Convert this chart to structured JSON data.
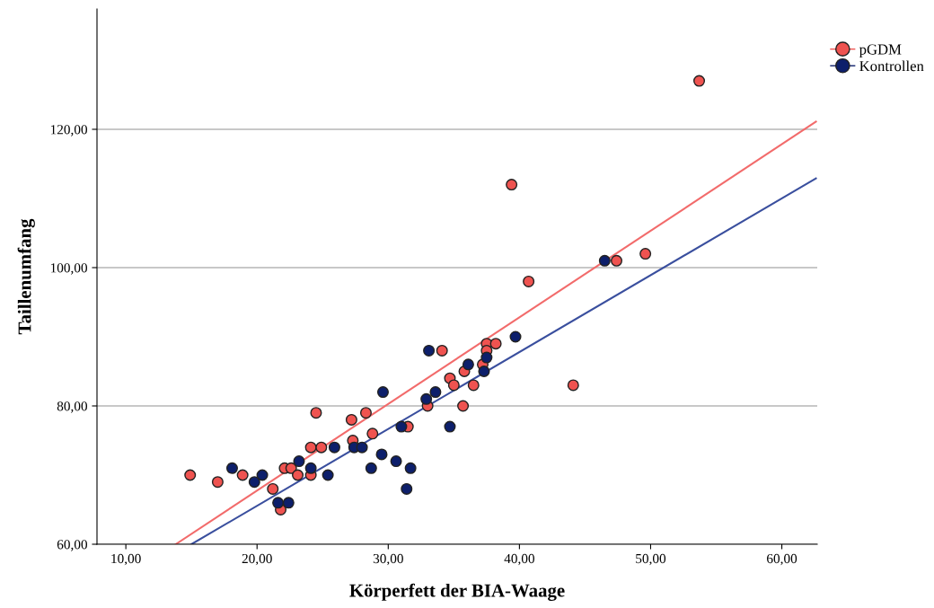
{
  "chart_data": {
    "type": "scatter",
    "xlabel": "Körperfett der BIA-Waage",
    "ylabel": "Taillenumfang",
    "xlim": [
      7.8,
      62.7
    ],
    "ylim": [
      60,
      137.4
    ],
    "xticks": [
      {
        "value": 10,
        "label": "10,00"
      },
      {
        "value": 20,
        "label": "20,00"
      },
      {
        "value": 30,
        "label": "30,00"
      },
      {
        "value": 40,
        "label": "40,00"
      },
      {
        "value": 50,
        "label": "50,00"
      },
      {
        "value": 60,
        "label": "60,00"
      }
    ],
    "yticks": [
      {
        "value": 60,
        "label": "60,00"
      },
      {
        "value": 80,
        "label": "80,00"
      },
      {
        "value": 100,
        "label": "100,00"
      },
      {
        "value": 120,
        "label": "120,00"
      }
    ],
    "grid": "y",
    "legend": "top right",
    "marker": "circle",
    "series": [
      {
        "name": "pGDM",
        "color": "#ef5350",
        "x": [
          14.9,
          17.0,
          18.9,
          21.2,
          21.8,
          22.1,
          22.6,
          23.1,
          24.1,
          24.1,
          24.5,
          24.9,
          27.2,
          27.3,
          28.3,
          28.8,
          31.5,
          33.0,
          34.1,
          34.7,
          35.0,
          35.7,
          35.8,
          36.5,
          37.2,
          37.5,
          37.5,
          38.2,
          39.4,
          40.7,
          44.1,
          47.4,
          49.6,
          53.7
        ],
        "values": [
          70,
          69,
          70,
          68,
          65,
          71,
          71,
          70,
          70,
          74,
          79,
          74,
          78,
          75,
          79,
          76,
          77,
          80,
          88,
          84,
          83,
          80,
          85,
          83,
          86,
          89,
          88,
          89,
          112,
          98,
          83,
          101,
          102,
          127
        ]
      },
      {
        "name": "Kontrollen",
        "color": "#0d1f6b",
        "x": [
          18.1,
          19.8,
          20.4,
          21.6,
          22.4,
          23.2,
          24.1,
          25.4,
          25.9,
          27.4,
          28.0,
          28.7,
          29.5,
          29.6,
          30.6,
          31.0,
          31.4,
          31.7,
          32.9,
          33.1,
          33.6,
          34.7,
          36.1,
          37.3,
          37.5,
          39.7,
          46.5
        ],
        "values": [
          71,
          69,
          70,
          66,
          66,
          72,
          71,
          70,
          74,
          74,
          74,
          71,
          73,
          82,
          72,
          77,
          68,
          71,
          81,
          88,
          82,
          77,
          86,
          85,
          87,
          90,
          101
        ]
      },
      {
        "type": "line",
        "color": "#f26b6b",
        "marker": "none",
        "x": [
          13.8,
          62.6
        ],
        "values": [
          60,
          121.1
        ]
      },
      {
        "type": "line",
        "color": "#3a4f9e",
        "marker": "none",
        "x": [
          15.0,
          62.6
        ],
        "values": [
          60,
          112.9
        ]
      }
    ]
  }
}
